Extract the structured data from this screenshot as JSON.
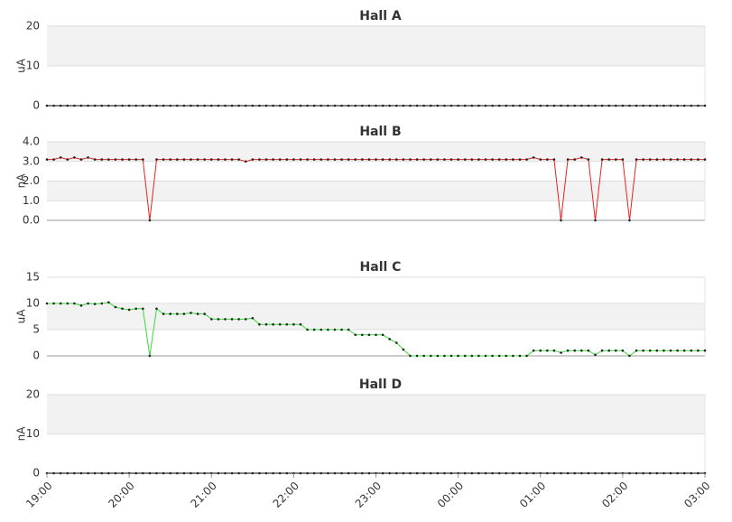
{
  "x": [
    "19:00",
    "19:05",
    "19:10",
    "19:15",
    "19:20",
    "19:25",
    "19:30",
    "19:35",
    "19:40",
    "19:45",
    "19:50",
    "19:55",
    "20:00",
    "20:05",
    "20:10",
    "20:15",
    "20:20",
    "20:25",
    "20:30",
    "20:35",
    "20:40",
    "20:45",
    "20:50",
    "20:55",
    "21:00",
    "21:05",
    "21:10",
    "21:15",
    "21:20",
    "21:25",
    "21:30",
    "21:35",
    "21:40",
    "21:45",
    "21:50",
    "21:55",
    "22:00",
    "22:05",
    "22:10",
    "22:15",
    "22:20",
    "22:25",
    "22:30",
    "22:35",
    "22:40",
    "22:45",
    "22:50",
    "22:55",
    "23:00",
    "23:05",
    "23:10",
    "23:15",
    "23:20",
    "23:25",
    "23:30",
    "23:35",
    "23:40",
    "23:45",
    "23:50",
    "23:55",
    "00:00",
    "00:05",
    "00:10",
    "00:15",
    "00:20",
    "00:25",
    "00:30",
    "00:35",
    "00:40",
    "00:45",
    "00:50",
    "00:55",
    "01:00",
    "01:05",
    "01:10",
    "01:15",
    "01:20",
    "01:25",
    "01:30",
    "01:35",
    "01:40",
    "01:45",
    "01:50",
    "01:55",
    "02:00",
    "02:05",
    "02:10",
    "02:15",
    "02:20",
    "02:25",
    "02:30",
    "02:35",
    "02:40",
    "02:45",
    "02:50",
    "02:55",
    "03:00"
  ],
  "xticks": [
    "19:00",
    "20:00",
    "21:00",
    "22:00",
    "23:00",
    "00:00",
    "01:00",
    "02:00",
    "03:00"
  ],
  "chart_data": [
    {
      "type": "line",
      "title": "Hall A",
      "ylabel": "uA",
      "ylim": [
        0,
        20
      ],
      "yticks": [
        0,
        10,
        20
      ],
      "grid": true,
      "series": [
        {
          "name": "Hall A",
          "color": "#000000",
          "values": [
            0,
            0,
            0,
            0,
            0,
            0,
            0,
            0,
            0,
            0,
            0,
            0,
            0,
            0,
            0,
            0,
            0,
            0,
            0,
            0,
            0,
            0,
            0,
            0,
            0,
            0,
            0,
            0,
            0,
            0,
            0,
            0,
            0,
            0,
            0,
            0,
            0,
            0,
            0,
            0,
            0,
            0,
            0,
            0,
            0,
            0,
            0,
            0,
            0,
            0,
            0,
            0,
            0,
            0,
            0,
            0,
            0,
            0,
            0,
            0,
            0,
            0,
            0,
            0,
            0,
            0,
            0,
            0,
            0,
            0,
            0,
            0,
            0,
            0,
            0,
            0,
            0,
            0,
            0,
            0,
            0,
            0,
            0,
            0,
            0,
            0,
            0,
            0,
            0,
            0,
            0,
            0,
            0,
            0,
            0,
            0,
            0
          ]
        }
      ]
    },
    {
      "type": "line",
      "title": "Hall B",
      "ylabel": "nA",
      "ylim": [
        0,
        4
      ],
      "yticks": [
        {
          "value": 0,
          "label": "0.0"
        },
        {
          "value": 1,
          "label": "1.0"
        },
        {
          "value": 2,
          "label": "2.0"
        },
        {
          "value": 3,
          "label": "3.0"
        },
        {
          "value": 4,
          "label": "4.0"
        }
      ],
      "grid": true,
      "series": [
        {
          "name": "Hall B",
          "color": "#e82020",
          "values": [
            3.1,
            3.1,
            3.2,
            3.1,
            3.2,
            3.1,
            3.2,
            3.1,
            3.1,
            3.1,
            3.1,
            3.1,
            3.1,
            3.1,
            3.1,
            0,
            3.1,
            3.1,
            3.1,
            3.1,
            3.1,
            3.1,
            3.1,
            3.1,
            3.1,
            3.1,
            3.1,
            3.1,
            3.1,
            3.0,
            3.1,
            3.1,
            3.1,
            3.1,
            3.1,
            3.1,
            3.1,
            3.1,
            3.1,
            3.1,
            3.1,
            3.1,
            3.1,
            3.1,
            3.1,
            3.1,
            3.1,
            3.1,
            3.1,
            3.1,
            3.1,
            3.1,
            3.1,
            3.1,
            3.1,
            3.1,
            3.1,
            3.1,
            3.1,
            3.1,
            3.1,
            3.1,
            3.1,
            3.1,
            3.1,
            3.1,
            3.1,
            3.1,
            3.1,
            3.1,
            3.1,
            3.2,
            3.1,
            3.1,
            3.1,
            0,
            3.1,
            3.1,
            3.2,
            3.1,
            0,
            3.1,
            3.1,
            3.1,
            3.1,
            0,
            3.1,
            3.1,
            3.1,
            3.1,
            3.1,
            3.1,
            3.1,
            3.1,
            3.1,
            3.1,
            3.1
          ]
        }
      ]
    },
    {
      "type": "line",
      "title": "Hall C",
      "ylabel": "uA",
      "ylim": [
        0,
        15
      ],
      "yticks": [
        0,
        5,
        10,
        15
      ],
      "grid": true,
      "series": [
        {
          "name": "Hall C",
          "color": "#33dd33",
          "values": [
            10,
            10,
            10,
            10,
            10,
            9.6,
            10,
            9.9,
            10,
            10.2,
            9.3,
            9,
            8.8,
            9,
            9,
            0,
            9,
            8,
            8,
            8,
            8,
            8.2,
            8,
            8,
            7,
            7,
            7,
            7,
            7,
            7,
            7.2,
            6,
            6,
            6,
            6,
            6,
            6,
            6,
            5,
            5,
            5,
            5,
            5,
            5,
            5,
            4,
            4,
            4,
            4,
            4,
            3.2,
            2.5,
            1.2,
            0,
            0,
            0,
            0,
            0,
            0,
            0,
            0,
            0,
            0,
            0,
            0,
            0,
            0,
            0,
            0,
            0,
            0,
            1,
            1,
            1,
            1,
            0.6,
            1,
            1,
            1,
            1,
            0.2,
            1,
            1,
            1,
            1,
            0,
            1,
            1,
            1,
            1,
            1,
            1,
            1,
            1,
            1,
            1,
            1
          ]
        }
      ]
    },
    {
      "type": "line",
      "title": "Hall D",
      "ylabel": "nA",
      "ylim": [
        0,
        20
      ],
      "yticks": [
        0,
        10,
        20
      ],
      "grid": true,
      "series": [
        {
          "name": "Hall D",
          "color": "#000000",
          "values": [
            0,
            0,
            0,
            0,
            0,
            0,
            0,
            0,
            0,
            0,
            0,
            0,
            0,
            0,
            0,
            0,
            0,
            0,
            0,
            0,
            0,
            0,
            0,
            0,
            0,
            0,
            0,
            0,
            0,
            0,
            0,
            0,
            0,
            0,
            0,
            0,
            0,
            0,
            0,
            0,
            0,
            0,
            0,
            0,
            0,
            0,
            0,
            0,
            0,
            0,
            0,
            0,
            0,
            0,
            0,
            0,
            0,
            0,
            0,
            0,
            0,
            0,
            0,
            0,
            0,
            0,
            0,
            0,
            0,
            0,
            0,
            0,
            0,
            0,
            0,
            0,
            0,
            0,
            0,
            0,
            0,
            0,
            0,
            0,
            0,
            0,
            0,
            0,
            0,
            0,
            0,
            0,
            0,
            0,
            0,
            0,
            0
          ]
        }
      ]
    }
  ]
}
